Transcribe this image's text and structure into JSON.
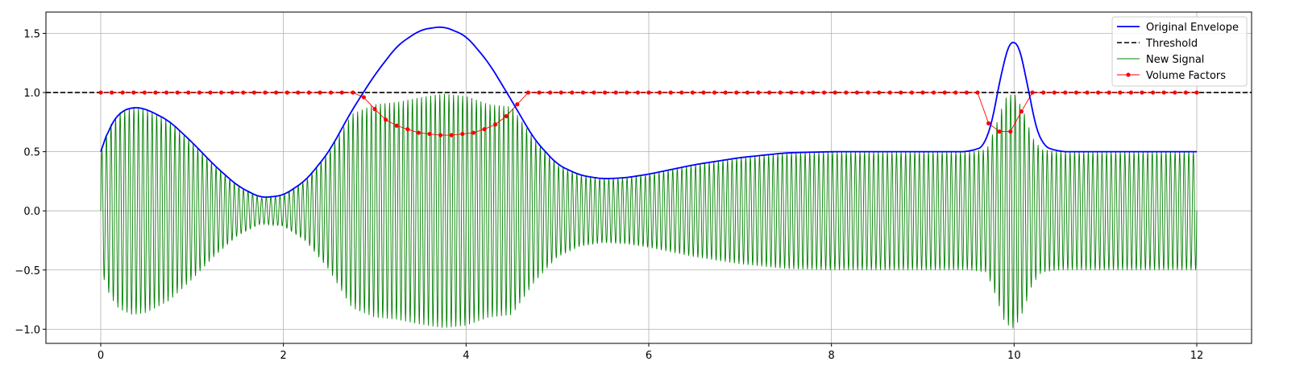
{
  "chart_data": {
    "type": "line",
    "title": "",
    "xlabel": "",
    "ylabel": "",
    "xlim": [
      -0.6,
      12.6
    ],
    "ylim": [
      -1.12,
      1.68
    ],
    "xticks": [
      0,
      2,
      4,
      6,
      8,
      10,
      12
    ],
    "xtick_labels": [
      "0",
      "2",
      "4",
      "6",
      "8",
      "10",
      "12"
    ],
    "yticks": [
      -1.0,
      -0.5,
      0.0,
      0.5,
      1.0,
      1.5
    ],
    "ytick_labels": [
      "−1.0",
      "−0.5",
      "0.0",
      "0.5",
      "1.0",
      "1.5"
    ],
    "grid": true,
    "legend_position": "top-right",
    "threshold": 1.0,
    "series": [
      {
        "name": "Original Envelope",
        "color": "#0000ff",
        "style": "solid",
        "x": [
          0.0,
          0.1,
          0.2,
          0.35,
          0.5,
          0.75,
          1.0,
          1.25,
          1.5,
          1.75,
          2.0,
          2.25,
          2.5,
          2.75,
          3.0,
          3.25,
          3.5,
          3.75,
          4.0,
          4.25,
          4.5,
          4.75,
          5.0,
          5.25,
          5.5,
          5.75,
          6.0,
          6.5,
          7.0,
          7.5,
          8.0,
          8.5,
          9.0,
          9.5,
          9.7,
          9.8,
          9.9,
          10.0,
          10.1,
          10.2,
          10.3,
          10.5,
          11.0,
          12.0
        ],
        "y": [
          0.5,
          0.72,
          0.83,
          0.88,
          0.86,
          0.76,
          0.58,
          0.38,
          0.21,
          0.11,
          0.13,
          0.26,
          0.5,
          0.85,
          1.15,
          1.4,
          1.53,
          1.56,
          1.48,
          1.25,
          0.93,
          0.6,
          0.39,
          0.3,
          0.27,
          0.28,
          0.31,
          0.39,
          0.45,
          0.49,
          0.5,
          0.5,
          0.5,
          0.5,
          0.55,
          0.9,
          1.35,
          1.5,
          1.3,
          0.8,
          0.55,
          0.5,
          0.5,
          0.5
        ]
      },
      {
        "name": "Threshold",
        "color": "#000000",
        "style": "dashed",
        "y": 1.0
      },
      {
        "name": "New Signal",
        "color": "#008000",
        "style": "solid",
        "carrier_frequency": 20,
        "x_range": [
          0,
          12
        ],
        "amplitude_envelope": {
          "x": [
            0.0,
            0.1,
            0.2,
            0.35,
            0.5,
            0.75,
            1.0,
            1.25,
            1.5,
            1.75,
            2.0,
            2.25,
            2.5,
            2.75,
            3.0,
            3.25,
            3.5,
            3.75,
            4.0,
            4.25,
            4.5,
            4.75,
            5.0,
            5.25,
            5.5,
            5.75,
            6.0,
            6.5,
            7.0,
            7.5,
            8.0,
            8.5,
            9.0,
            9.5,
            9.7,
            9.8,
            9.9,
            10.0,
            10.1,
            10.2,
            10.3,
            10.5,
            11.0,
            12.0
          ],
          "y": [
            0.5,
            0.72,
            0.83,
            0.88,
            0.86,
            0.76,
            0.58,
            0.38,
            0.21,
            0.11,
            0.13,
            0.26,
            0.5,
            0.82,
            0.9,
            0.92,
            0.96,
            0.99,
            0.97,
            0.9,
            0.88,
            0.6,
            0.39,
            0.3,
            0.27,
            0.28,
            0.31,
            0.39,
            0.45,
            0.49,
            0.5,
            0.5,
            0.5,
            0.5,
            0.52,
            0.72,
            0.95,
            1.0,
            0.85,
            0.62,
            0.52,
            0.5,
            0.5,
            0.5
          ]
        }
      },
      {
        "name": "Volume Factors",
        "color": "#ff0000",
        "style": "solid",
        "marker": "circle",
        "x": [
          0.0,
          0.12,
          0.24,
          0.36,
          0.48,
          0.6,
          0.72,
          0.84,
          0.96,
          1.08,
          1.2,
          1.32,
          1.44,
          1.56,
          1.68,
          1.8,
          1.92,
          2.04,
          2.16,
          2.28,
          2.4,
          2.52,
          2.64,
          2.76,
          2.88,
          3.0,
          3.12,
          3.24,
          3.36,
          3.48,
          3.6,
          3.72,
          3.84,
          3.96,
          4.08,
          4.2,
          4.32,
          4.44,
          4.56,
          4.68,
          4.8,
          4.92,
          5.04,
          5.16,
          5.28,
          5.4,
          5.52,
          5.64,
          5.76,
          5.88,
          6.0,
          6.12,
          6.24,
          6.36,
          6.48,
          6.6,
          6.72,
          6.84,
          6.96,
          7.08,
          7.2,
          7.32,
          7.44,
          7.56,
          7.68,
          7.8,
          7.92,
          8.04,
          8.16,
          8.28,
          8.4,
          8.52,
          8.64,
          8.76,
          8.88,
          9.0,
          9.12,
          9.24,
          9.36,
          9.48,
          9.6,
          9.72,
          9.84,
          9.96,
          10.08,
          10.2,
          10.32,
          10.44,
          10.56,
          10.68,
          10.8,
          10.92,
          11.04,
          11.16,
          11.28,
          11.4,
          11.52,
          11.64,
          11.76,
          11.88,
          12.0
        ],
        "y": [
          1.0,
          1.0,
          1.0,
          1.0,
          1.0,
          1.0,
          1.0,
          1.0,
          1.0,
          1.0,
          1.0,
          1.0,
          1.0,
          1.0,
          1.0,
          1.0,
          1.0,
          1.0,
          1.0,
          1.0,
          1.0,
          1.0,
          1.0,
          1.0,
          0.96,
          0.86,
          0.77,
          0.72,
          0.69,
          0.66,
          0.65,
          0.64,
          0.64,
          0.65,
          0.66,
          0.69,
          0.73,
          0.8,
          0.9,
          1.0,
          1.0,
          1.0,
          1.0,
          1.0,
          1.0,
          1.0,
          1.0,
          1.0,
          1.0,
          1.0,
          1.0,
          1.0,
          1.0,
          1.0,
          1.0,
          1.0,
          1.0,
          1.0,
          1.0,
          1.0,
          1.0,
          1.0,
          1.0,
          1.0,
          1.0,
          1.0,
          1.0,
          1.0,
          1.0,
          1.0,
          1.0,
          1.0,
          1.0,
          1.0,
          1.0,
          1.0,
          1.0,
          1.0,
          1.0,
          1.0,
          1.0,
          0.74,
          0.67,
          0.67,
          0.84,
          1.0,
          1.0,
          1.0,
          1.0,
          1.0,
          1.0,
          1.0,
          1.0,
          1.0,
          1.0,
          1.0,
          1.0,
          1.0,
          1.0,
          1.0,
          1.0
        ]
      }
    ]
  }
}
